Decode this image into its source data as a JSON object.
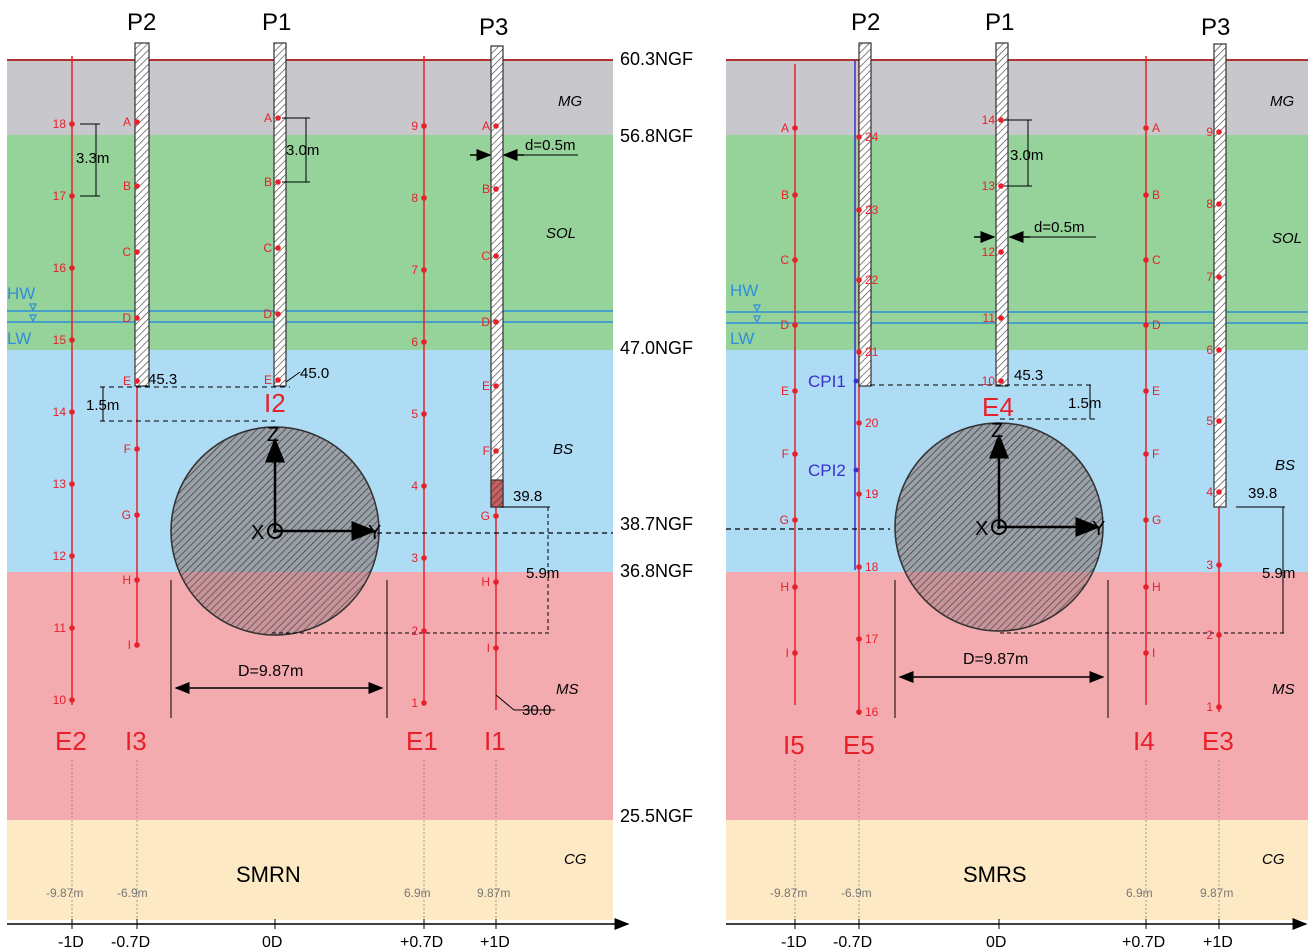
{
  "colors": {
    "MG": "#c8c8cc",
    "SOL": "#95d39a",
    "BS": "#aedcf5",
    "MS": "#f4abb0",
    "CG": "#fde9c4",
    "instrument": "#e8202a",
    "water": "#2f8fd8",
    "cpi": "#3b2fd0",
    "ground_line": "#b03030"
  },
  "elevations": {
    "top": "60.3NGF",
    "mg_sol": "56.8NGF",
    "sol_bs": "47.0NGF",
    "axis": "38.7NGF",
    "bs_ms": "36.8NGF",
    "ms_cg": "25.5NGF"
  },
  "layers": {
    "mg": "MG",
    "sol": "SOL",
    "bs": "BS",
    "ms": "MS",
    "cg": "CG"
  },
  "water": {
    "hw": "HW",
    "lw": "LW"
  },
  "x_axis_ticks": [
    "-1D",
    "-0.7D",
    "0D",
    "+0.7D",
    "+1D"
  ],
  "panels": {
    "left": {
      "section": "SMRN",
      "piles": [
        "P2",
        "P1",
        "P3"
      ],
      "tops": [
        "45.3",
        "45.0",
        "39.8",
        "30.0"
      ],
      "dims": [
        "3.3m",
        "3.0m",
        "d=0.5m",
        "1.5m",
        "5.9m",
        "D=9.87m"
      ],
      "axes": [
        "Z",
        "X",
        "Y"
      ],
      "instrument_names": [
        "E2",
        "I3",
        "I2",
        "E1",
        "I1"
      ],
      "e2_points": [
        "18",
        "17",
        "16",
        "15",
        "14",
        "13",
        "12",
        "11",
        "10"
      ],
      "i3_points": [
        "A",
        "B",
        "C",
        "D",
        "E",
        "F",
        "G",
        "H",
        "I"
      ],
      "p1_points": [
        "A",
        "B",
        "C",
        "D",
        "E"
      ],
      "e1_points": [
        "9",
        "8",
        "7",
        "6",
        "5",
        "4",
        "3",
        "2",
        "1"
      ],
      "p3_points": [
        "A",
        "B",
        "C",
        "D",
        "E",
        "F",
        "G",
        "H",
        "I"
      ],
      "offsets": [
        "-9.87m",
        "-6.9m",
        "6.9m",
        "9.87m"
      ]
    },
    "right": {
      "section": "SMRS",
      "piles": [
        "P2",
        "P1",
        "P3"
      ],
      "tops": [
        "45.3",
        "39.8"
      ],
      "dims": [
        "3.0m",
        "d=0.5m",
        "1.5m",
        "5.9m",
        "D=9.87m"
      ],
      "axes": [
        "Z",
        "X",
        "Y"
      ],
      "instrument_names": [
        "I5",
        "E5",
        "E4",
        "I4",
        "E3"
      ],
      "cpi": [
        "CPI1",
        "CPI2"
      ],
      "i5_points": [
        "A",
        "B",
        "C",
        "D",
        "E",
        "F",
        "G",
        "H",
        "I"
      ],
      "e5_points": [
        "24",
        "23",
        "22",
        "21",
        "20",
        "19",
        "18",
        "17",
        "16"
      ],
      "p1_points": [
        "14",
        "13",
        "12",
        "11",
        "10"
      ],
      "i4_points": [
        "A",
        "B",
        "C",
        "D",
        "E",
        "F",
        "G",
        "H",
        "I"
      ],
      "e3_points": [
        "9",
        "8",
        "7",
        "6",
        "5",
        "4",
        "3",
        "2",
        "1"
      ],
      "offsets": [
        "-9.87m",
        "-6.9m",
        "6.9m",
        "9.87m"
      ]
    }
  }
}
